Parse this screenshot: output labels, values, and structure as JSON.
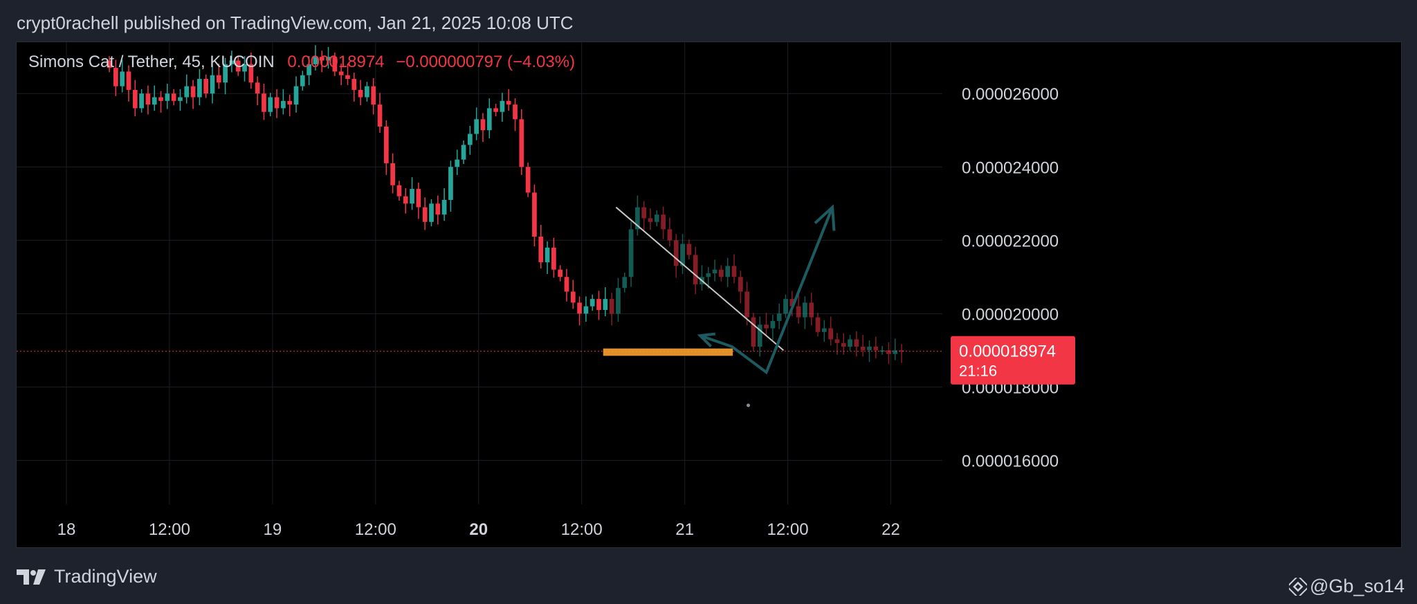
{
  "header": {
    "text": "crypt0rachell published on TradingView.com, Jan 21, 2025 10:08 UTC"
  },
  "footer": {
    "brand": "TradingView",
    "user": "@Gb_so14",
    "brand_icon": "tradingview-logo-icon",
    "user_icon": "binance-diamond-icon"
  },
  "colors": {
    "up": "#26a69a",
    "down": "#f23645",
    "grid": "#1c1f26",
    "text": "#d1d4dc",
    "price_tag_bg": "#f23645",
    "support_zone": "#f7a030",
    "projection": "#1e5b61",
    "trendline": "#c8c8c8"
  },
  "chart_data": {
    "type": "candlestick",
    "symbol_legend": {
      "name": "Simons Cat / Tether, 45, KUCOIN",
      "price": "0.000018974",
      "change": "−0.000000797 (−4.03%)"
    },
    "y_ticks": [
      "0.000026000",
      "0.000024000",
      "0.000022000",
      "0.000020000",
      "0.000018000",
      "0.000016000"
    ],
    "y_tick_values": [
      2.6e-05,
      2.4e-05,
      2.2e-05,
      2e-05,
      1.8e-05,
      1.6e-05
    ],
    "ylim": [
      1.48e-05,
      2.74e-05
    ],
    "x_ticks": [
      {
        "label": "18",
        "t": 0,
        "bold": false
      },
      {
        "label": "12:00",
        "t": 12,
        "bold": false
      },
      {
        "label": "19",
        "t": 24,
        "bold": false
      },
      {
        "label": "12:00",
        "t": 36,
        "bold": false
      },
      {
        "label": "20",
        "t": 48,
        "bold": true
      },
      {
        "label": "12:00",
        "t": 60,
        "bold": false
      },
      {
        "label": "21",
        "t": 72,
        "bold": false
      },
      {
        "label": "12:00",
        "t": 84,
        "bold": false
      },
      {
        "label": "22",
        "t": 96,
        "bold": false
      }
    ],
    "xlim": [
      -5.8,
      102
    ],
    "last_price": {
      "value": 1.8974e-05,
      "label": "0.000018974",
      "countdown": "21:16"
    },
    "candle_interval_hours": 0.75,
    "candles_start_t": 5,
    "closes": [
      26.7,
      26.2,
      26.6,
      26.1,
      25.6,
      26.0,
      25.7,
      25.9,
      25.8,
      26.0,
      25.8,
      25.9,
      26.2,
      25.9,
      26.4,
      26.0,
      26.5,
      26.3,
      26.8,
      26.9,
      26.6,
      26.8,
      26.3,
      26.0,
      25.5,
      25.9,
      25.6,
      25.8,
      25.7,
      26.2,
      26.5,
      26.8,
      27.0,
      26.9,
      27.0,
      26.6,
      26.5,
      26.4,
      26.1,
      25.9,
      26.2,
      25.7,
      25.1,
      24.1,
      23.5,
      23.2,
      23.0,
      23.4,
      22.9,
      22.5,
      23.0,
      22.7,
      23.1,
      24.0,
      24.2,
      24.6,
      24.9,
      25.3,
      25.0,
      25.6,
      25.5,
      25.8,
      25.7,
      25.3,
      24.0,
      23.3,
      22.1,
      21.4,
      21.8,
      21.2,
      21.0,
      20.6,
      20.3,
      20.0,
      20.2,
      20.4,
      20.1,
      20.4,
      20.0,
      20.7,
      21.0,
      22.3,
      22.9,
      22.6,
      22.5,
      22.7,
      22.3,
      22.0,
      21.3,
      21.9,
      21.6,
      20.8,
      21.0,
      21.1,
      21.2,
      21.0,
      21.3,
      21.0,
      20.6,
      19.9,
      19.1,
      19.7,
      19.6,
      19.8,
      20.0,
      20.4,
      20.2,
      19.9,
      20.3,
      19.9,
      19.5,
      19.6,
      19.3,
      19.2,
      19.1,
      19.3,
      19.1,
      19.0,
      19.1,
      19.0,
      19.0,
      18.9,
      19.0,
      18.974
    ],
    "opaque_candle_count": 78,
    "trendline": {
      "start": {
        "t": 64.0,
        "v": 2.29e-05
      },
      "end": {
        "t": 83.5,
        "v": 1.9e-05
      }
    },
    "support_zone": {
      "t_start": 62.5,
      "t_end": 77.6,
      "v_top": 1.905e-05,
      "v_bottom": 1.885e-05
    },
    "projection_path": [
      {
        "t": 73.8,
        "v": 1.94e-05
      },
      {
        "t": 77.5,
        "v": 1.91e-05
      },
      {
        "t": 81.5,
        "v": 1.84e-05
      },
      {
        "t": 89.2,
        "v": 2.29e-05
      }
    ],
    "projection_start_arrow": {
      "t": 73.8,
      "v": 1.94e-05
    },
    "marker_dot": {
      "t": 79.4,
      "v": 1.75e-05
    }
  }
}
